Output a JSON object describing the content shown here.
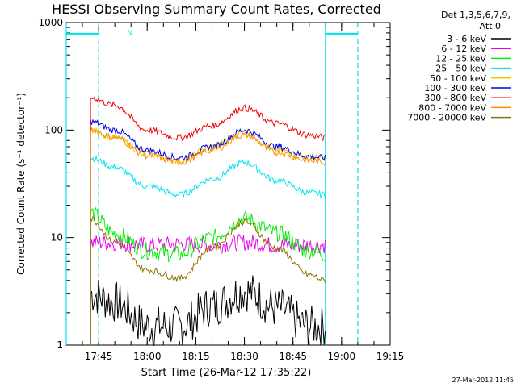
{
  "chart_data": {
    "type": "line",
    "title": "HESSI Observing Summary Count Rates, Corrected",
    "xlabel": "Start Time (26-Mar-12 17:35:22)",
    "ylabel": "Corrected Count Rate (s⁻¹ detector⁻¹)",
    "yscale": "log",
    "ylim": [
      1,
      1000
    ],
    "xlim_minutes_after_1735": [
      0,
      100
    ],
    "x_ticks": [
      {
        "t": 10,
        "label": "17:45"
      },
      {
        "t": 25,
        "label": "18:00"
      },
      {
        "t": 40,
        "label": "18:15"
      },
      {
        "t": 55,
        "label": "18:30"
      },
      {
        "t": 70,
        "label": "18:45"
      },
      {
        "t": 85,
        "label": "19:00"
      },
      {
        "t": 100,
        "label": "19:15"
      }
    ],
    "y_ticks": [
      {
        "v": 1,
        "label": "1"
      },
      {
        "v": 10,
        "label": "10"
      },
      {
        "v": 100,
        "label": "100"
      },
      {
        "v": 1000,
        "label": "1000"
      }
    ],
    "legend_header": [
      "Det 1,3,5,6,7,9,",
      "Att 0"
    ],
    "legend_position": "top-right",
    "annotations": {
      "night_marker": "N",
      "footer": "27-Mar-2012 11:45"
    },
    "markers": {
      "solid_lines_t": [
        0,
        80
      ],
      "dashed_lines_t": [
        10,
        90
      ],
      "bars": [
        [
          0,
          10
        ],
        [
          80,
          90
        ]
      ],
      "bar_value": 780,
      "color": "#00e5ee"
    },
    "x_sample_t": [
      7.5,
      15,
      25,
      35,
      45,
      55,
      65,
      75,
      80
    ],
    "series": [
      {
        "name": "3 - 6 keV",
        "color": "#000000",
        "values": [
          3,
          2.5,
          1.5,
          1.5,
          2.3,
          3.2,
          2.2,
          1.5,
          1.5
        ]
      },
      {
        "name": "6 - 12 keV",
        "color": "#ee00ee",
        "values": [
          9,
          9,
          8.5,
          8.7,
          8.5,
          9,
          8.5,
          8.5,
          8.5
        ]
      },
      {
        "name": "12 - 25 keV",
        "color": "#00ee00",
        "values": [
          17,
          11,
          7.5,
          7,
          10,
          15,
          11,
          7.5,
          7
        ]
      },
      {
        "name": "25 - 50 keV",
        "color": "#00e5ee",
        "values": [
          55,
          45,
          30,
          25,
          35,
          50,
          34,
          26,
          25
        ]
      },
      {
        "name": "50 - 100 keV",
        "color": "#e8c800",
        "values": [
          100,
          85,
          60,
          52,
          70,
          95,
          65,
          55,
          55
        ]
      },
      {
        "name": "100 - 300 keV",
        "color": "#0000ee",
        "values": [
          120,
          100,
          65,
          55,
          70,
          100,
          70,
          57,
          55
        ]
      },
      {
        "name": "300 - 800 keV",
        "color": "#ee0000",
        "values": [
          200,
          170,
          100,
          85,
          110,
          160,
          115,
          90,
          85
        ]
      },
      {
        "name": "800 - 7000 keV",
        "color": "#ff8c00",
        "values": [
          100,
          85,
          58,
          50,
          65,
          90,
          62,
          52,
          50
        ]
      },
      {
        "name": "7000 - 20000 keV",
        "color": "#8b7500",
        "values": [
          15,
          9,
          5,
          4.2,
          8,
          14,
          8,
          4.5,
          4
        ]
      }
    ]
  }
}
